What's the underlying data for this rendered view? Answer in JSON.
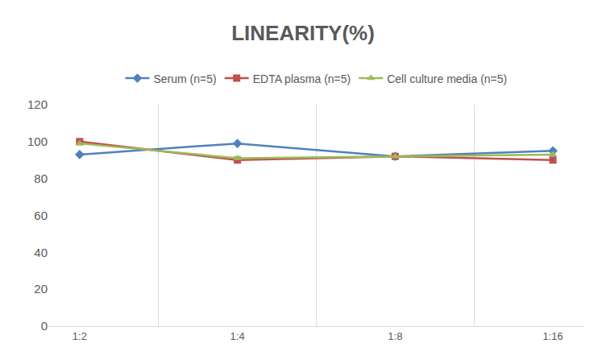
{
  "chart_data": {
    "type": "line",
    "title": "LINEARITY(%)",
    "categories": [
      "1:2",
      "1:4",
      "1:8",
      "1:16"
    ],
    "series": [
      {
        "name": "Serum (n=5)",
        "color": "#4F81BD",
        "marker": "diamond",
        "values": [
          93,
          99,
          92,
          95
        ]
      },
      {
        "name": "EDTA plasma (n=5)",
        "color": "#C0504D",
        "marker": "square",
        "values": [
          100,
          90,
          92,
          90
        ]
      },
      {
        "name": "Cell culture media (n=5)",
        "color": "#9BBB59",
        "marker": "triangle-up",
        "values": [
          99,
          91,
          92,
          93
        ]
      }
    ],
    "ylim": [
      0,
      120
    ],
    "yticks": [
      0,
      20,
      40,
      60,
      80,
      100,
      120
    ],
    "grid": true,
    "legend": "top"
  }
}
